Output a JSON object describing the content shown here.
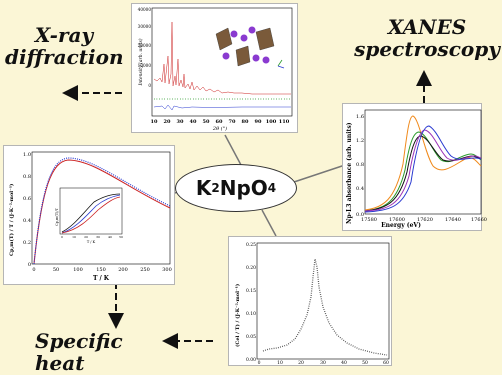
{
  "labels": {
    "xrd_line1": "X-ray",
    "xrd_line2": "diffraction",
    "xanes_line1": "XANES",
    "xanes_line2": "spectroscopy",
    "specific_heat": "Specific heat"
  },
  "compound": {
    "k": "K",
    "sub2": "2",
    "np": "NpO",
    "sub4": "4"
  },
  "xrd": {
    "ylabel": "Intensity (arb. units)",
    "xlabel": "2θ (°)",
    "yticks": [
      "0",
      "10000",
      "20000",
      "30000",
      "40000"
    ],
    "xticks": [
      "10",
      "20",
      "30",
      "40",
      "50",
      "60",
      "70",
      "80",
      "90",
      "100",
      "110"
    ]
  },
  "xanes": {
    "ylabel": "Np-L3 absorbance (arb. units)",
    "xlabel": "Energy (eV)",
    "yticks": [
      "0.0",
      "0.4",
      "0.8",
      "1.2",
      "1.6"
    ],
    "xticks": [
      "17580",
      "17600",
      "17620",
      "17640",
      "17660"
    ]
  },
  "cp": {
    "ylabel": "Cp,m(T) / T / (J·K⁻²·mol⁻¹)",
    "xlabel": "T / K",
    "yticks": [
      "0",
      "0.2",
      "0.4",
      "0.6",
      "0.8",
      "1.0"
    ],
    "xticks": [
      "0",
      "50",
      "100",
      "150",
      "200",
      "250",
      "300"
    ],
    "inset_xlabel": "T / K",
    "inset_ylabel": "Cp,m(T)/T",
    "inset_xticks": [
      "0",
      "10",
      "20",
      "30",
      "40",
      "50"
    ]
  },
  "cel": {
    "ylabel": "(Cel / T) / (J·K⁻²·mol⁻¹)",
    "yticks": [
      "0.00",
      "0.05",
      "0.10",
      "0.15",
      "0.20",
      "0.25"
    ],
    "xticks": [
      "0",
      "10",
      "20",
      "30",
      "40",
      "50",
      "60"
    ]
  },
  "colors": {
    "background": "#fbf6d6",
    "red": "#cc2222",
    "green": "#2a9a2a",
    "blue": "#2a3ad0",
    "orange": "#f08a1c",
    "purple": "#9b33b8",
    "black": "#111111"
  }
}
